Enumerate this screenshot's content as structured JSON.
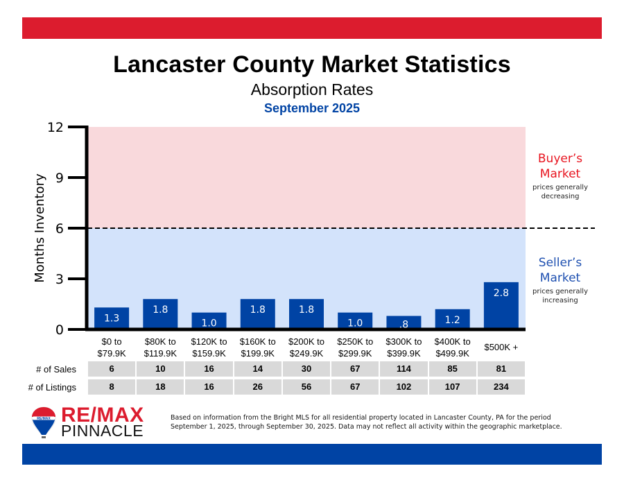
{
  "header": {
    "title": "Lancaster County Market Statistics",
    "subtitle": "Absorption Rates",
    "date": "September 2025"
  },
  "colors": {
    "brand_red": "#dc1c2e",
    "brand_blue": "#0043a4",
    "buyers_zone": "#f9d9dc",
    "sellers_zone": "#d3e3fb",
    "bar": "#0043a4",
    "table_cell": "#d9d9d9"
  },
  "chart_data": {
    "type": "bar",
    "title": "Absorption Rates",
    "xlabel": "",
    "ylabel": "Months Inventory",
    "ylim": [
      0,
      12
    ],
    "yticks": [
      0,
      3,
      6,
      9,
      12
    ],
    "grid": false,
    "categories": [
      [
        "$0 to",
        "$79.9K"
      ],
      [
        "$80K to",
        "$119.9K"
      ],
      [
        "$120K to",
        "$159.9K"
      ],
      [
        "$160K to",
        "$199.9K"
      ],
      [
        "$200K to",
        "$249.9K"
      ],
      [
        "$250K to",
        "$299.9K"
      ],
      [
        "$300K to",
        "$399.9K"
      ],
      [
        "$400K to",
        "$499.9K"
      ],
      [
        "$500K +",
        ""
      ]
    ],
    "values": [
      1.3,
      1.8,
      1.0,
      1.8,
      1.8,
      1.0,
      0.8,
      1.2,
      2.8
    ],
    "value_labels": [
      "1.3",
      "1.8",
      "1.0",
      "1.8",
      "1.8",
      "1.0",
      ".8",
      "1.2",
      "2.8"
    ],
    "threshold": 6,
    "threshold_style": "dashed",
    "zones": [
      {
        "name": "Buyer’s",
        "name2": "Market",
        "note1": "prices generally",
        "note2": "decreasing",
        "range": [
          6,
          12
        ],
        "color": "#dc1c2e"
      },
      {
        "name": "Seller’s",
        "name2": "Market",
        "note1": "prices generally",
        "note2": "increasing",
        "range": [
          0,
          6
        ],
        "color": "#0043a4"
      }
    ]
  },
  "table": {
    "rows": [
      {
        "label": "# of Sales",
        "values": [
          "6",
          "10",
          "16",
          "14",
          "30",
          "67",
          "114",
          "85",
          "81"
        ]
      },
      {
        "label": "# of Listings",
        "values": [
          "8",
          "18",
          "16",
          "26",
          "56",
          "67",
          "102",
          "107",
          "234"
        ]
      }
    ]
  },
  "footer": {
    "brand_line1": "RE/MAX",
    "brand_line2": "PINNACLE",
    "logo_text": "RE/MAX",
    "disclaimer": "Based on information from the Bright MLS for all residential property located in Lancaster County, PA for the period September 1, 2025, through September 30, 2025.  Data may not reflect all activity within the geographic marketplace."
  }
}
